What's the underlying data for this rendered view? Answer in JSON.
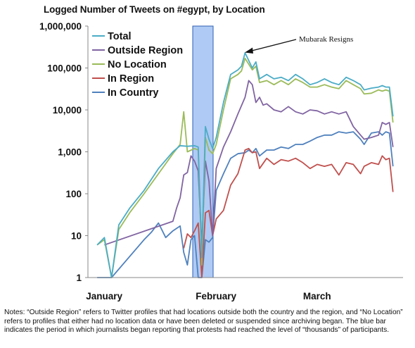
{
  "chart_data": {
    "type": "line",
    "title": "Logged Number of Tweets on #egypt, by Location",
    "xlabel": "",
    "ylabel": "",
    "yscale": "log",
    "ylim": [
      1,
      1000000
    ],
    "y_ticks": [
      "1,000,000",
      "100,000",
      "10,000",
      "1,000",
      "100",
      "10",
      "1"
    ],
    "x_ticks": [
      "January",
      "February",
      "March"
    ],
    "grid": false,
    "legend_position": "top-left",
    "annotation": "Mubarak Resigns",
    "highlight_band_note": "journalists began reporting that protests had reached the level of \"thousands\" of participants",
    "x_day_labels": [
      1,
      32,
      60
    ],
    "series": [
      {
        "name": "Total",
        "color": "#4bacc6",
        "points": [
          [
            1,
            6
          ],
          [
            3,
            9
          ],
          [
            5,
            1
          ],
          [
            7,
            18
          ],
          [
            10,
            45
          ],
          [
            14,
            120
          ],
          [
            18,
            400
          ],
          [
            22,
            1000
          ],
          [
            24,
            1400
          ],
          [
            26,
            1350
          ],
          [
            28,
            1400
          ],
          [
            29,
            1300
          ],
          [
            30,
            3
          ],
          [
            31,
            4000
          ],
          [
            32,
            2000
          ],
          [
            33,
            1200
          ],
          [
            34,
            2200
          ],
          [
            36,
            15000
          ],
          [
            38,
            70000
          ],
          [
            40,
            90000
          ],
          [
            41,
            110000
          ],
          [
            42,
            230000
          ],
          [
            44,
            100000
          ],
          [
            45,
            140000
          ],
          [
            46,
            55000
          ],
          [
            48,
            70000
          ],
          [
            50,
            55000
          ],
          [
            52,
            60000
          ],
          [
            54,
            50000
          ],
          [
            56,
            70000
          ],
          [
            58,
            55000
          ],
          [
            60,
            40000
          ],
          [
            62,
            45000
          ],
          [
            64,
            55000
          ],
          [
            66,
            45000
          ],
          [
            68,
            40000
          ],
          [
            70,
            60000
          ],
          [
            72,
            50000
          ],
          [
            74,
            40000
          ],
          [
            75,
            30000
          ],
          [
            77,
            33000
          ],
          [
            79,
            35000
          ],
          [
            80,
            38000
          ],
          [
            81,
            35000
          ],
          [
            82,
            35000
          ],
          [
            83,
            7000
          ]
        ]
      },
      {
        "name": "Outside Region",
        "color": "#8064a2",
        "points": [
          [
            3,
            6
          ],
          [
            22,
            22
          ],
          [
            23,
            45
          ],
          [
            24,
            80
          ],
          [
            25,
            280
          ],
          [
            26,
            320
          ],
          [
            27,
            800
          ],
          [
            28,
            600
          ],
          [
            29,
            350
          ],
          [
            30,
            6
          ],
          [
            31,
            600
          ],
          [
            32,
            200
          ],
          [
            33,
            10
          ],
          [
            34,
            400
          ],
          [
            36,
            1300
          ],
          [
            38,
            3000
          ],
          [
            40,
            8000
          ],
          [
            42,
            20000
          ],
          [
            43,
            50000
          ],
          [
            44,
            40000
          ],
          [
            45,
            15000
          ],
          [
            46,
            20000
          ],
          [
            47,
            13000
          ],
          [
            48,
            14000
          ],
          [
            50,
            10000
          ],
          [
            52,
            9000
          ],
          [
            54,
            12000
          ],
          [
            56,
            9000
          ],
          [
            58,
            8000
          ],
          [
            60,
            10000
          ],
          [
            62,
            9500
          ],
          [
            64,
            8000
          ],
          [
            66,
            9000
          ],
          [
            68,
            8000
          ],
          [
            70,
            9000
          ],
          [
            72,
            4000
          ],
          [
            74,
            2500
          ],
          [
            75,
            2000
          ],
          [
            77,
            2200
          ],
          [
            79,
            2500
          ],
          [
            80,
            5000
          ],
          [
            81,
            4500
          ],
          [
            82,
            5000
          ],
          [
            83,
            1300
          ]
        ]
      },
      {
        "name": "No Location",
        "color": "#9bbb59",
        "points": [
          [
            1,
            6
          ],
          [
            3,
            8
          ],
          [
            5,
            1
          ],
          [
            7,
            14
          ],
          [
            10,
            35
          ],
          [
            14,
            100
          ],
          [
            18,
            300
          ],
          [
            22,
            900
          ],
          [
            24,
            1500
          ],
          [
            25,
            9000
          ],
          [
            26,
            1000
          ],
          [
            28,
            1200
          ],
          [
            29,
            1100
          ],
          [
            30,
            2
          ],
          [
            31,
            2200
          ],
          [
            32,
            1100
          ],
          [
            33,
            900
          ],
          [
            34,
            1500
          ],
          [
            36,
            10000
          ],
          [
            38,
            55000
          ],
          [
            40,
            70000
          ],
          [
            41,
            85000
          ],
          [
            42,
            170000
          ],
          [
            44,
            90000
          ],
          [
            45,
            110000
          ],
          [
            46,
            45000
          ],
          [
            48,
            50000
          ],
          [
            50,
            40000
          ],
          [
            52,
            50000
          ],
          [
            54,
            40000
          ],
          [
            56,
            55000
          ],
          [
            58,
            45000
          ],
          [
            60,
            35000
          ],
          [
            62,
            35000
          ],
          [
            64,
            40000
          ],
          [
            66,
            35000
          ],
          [
            68,
            32000
          ],
          [
            70,
            50000
          ],
          [
            72,
            40000
          ],
          [
            74,
            32000
          ],
          [
            75,
            24000
          ],
          [
            77,
            25000
          ],
          [
            79,
            30000
          ],
          [
            80,
            28000
          ],
          [
            81,
            30000
          ],
          [
            82,
            28000
          ],
          [
            83,
            5000
          ]
        ]
      },
      {
        "name": "In Region",
        "color": "#c0504d",
        "points": [
          [
            25,
            5
          ],
          [
            26,
            11
          ],
          [
            27,
            9
          ],
          [
            28,
            13
          ],
          [
            29,
            20
          ],
          [
            30,
            1
          ],
          [
            31,
            35
          ],
          [
            32,
            40
          ],
          [
            33,
            10
          ],
          [
            34,
            25
          ],
          [
            36,
            40
          ],
          [
            38,
            160
          ],
          [
            40,
            300
          ],
          [
            42,
            1100
          ],
          [
            43,
            1200
          ],
          [
            44,
            950
          ],
          [
            45,
            1000
          ],
          [
            46,
            400
          ],
          [
            48,
            700
          ],
          [
            50,
            500
          ],
          [
            52,
            650
          ],
          [
            54,
            600
          ],
          [
            56,
            700
          ],
          [
            58,
            550
          ],
          [
            60,
            400
          ],
          [
            62,
            500
          ],
          [
            64,
            450
          ],
          [
            66,
            500
          ],
          [
            68,
            280
          ],
          [
            70,
            550
          ],
          [
            72,
            500
          ],
          [
            74,
            300
          ],
          [
            75,
            450
          ],
          [
            77,
            550
          ],
          [
            79,
            500
          ],
          [
            80,
            800
          ],
          [
            81,
            650
          ],
          [
            82,
            700
          ],
          [
            83,
            110
          ]
        ]
      },
      {
        "name": "In Country",
        "color": "#4f81bd",
        "points": [
          [
            1,
            1
          ],
          [
            5,
            1
          ],
          [
            14,
            8
          ],
          [
            16,
            12
          ],
          [
            18,
            20
          ],
          [
            20,
            9
          ],
          [
            22,
            13
          ],
          [
            24,
            17
          ],
          [
            25,
            4
          ],
          [
            26,
            2
          ],
          [
            27,
            8
          ],
          [
            28,
            10
          ],
          [
            29,
            1
          ],
          [
            30,
            1
          ],
          [
            31,
            8
          ],
          [
            32,
            7
          ],
          [
            33,
            9
          ],
          [
            34,
            120
          ],
          [
            36,
            300
          ],
          [
            38,
            700
          ],
          [
            40,
            900
          ],
          [
            42,
            950
          ],
          [
            43,
            1100
          ],
          [
            44,
            950
          ],
          [
            45,
            1200
          ],
          [
            46,
            800
          ],
          [
            48,
            1100
          ],
          [
            50,
            1100
          ],
          [
            52,
            1300
          ],
          [
            54,
            1200
          ],
          [
            56,
            1500
          ],
          [
            58,
            1500
          ],
          [
            60,
            1800
          ],
          [
            62,
            2200
          ],
          [
            64,
            2500
          ],
          [
            66,
            2500
          ],
          [
            68,
            3000
          ],
          [
            70,
            2800
          ],
          [
            72,
            3000
          ],
          [
            74,
            2000
          ],
          [
            75,
            1500
          ],
          [
            77,
            2800
          ],
          [
            79,
            3000
          ],
          [
            80,
            2500
          ],
          [
            81,
            3000
          ],
          [
            82,
            2800
          ],
          [
            83,
            450
          ]
        ]
      }
    ]
  },
  "notes": "Notes: “Outside Region” refers to Twitter profiles that had locations outside both the country and the region, and “No Location” refers to profiles that either had no location data or have been deleted or suspended since archiving began. The blue bar indicates the period in which journalists began reporting that protests had reached the level of “thousands” of participants."
}
